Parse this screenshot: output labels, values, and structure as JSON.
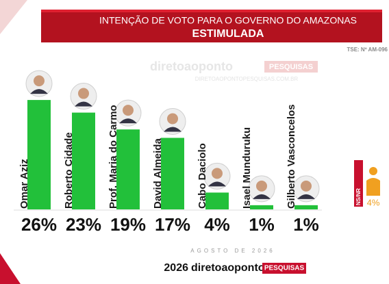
{
  "chart_data": {
    "type": "bar",
    "title": "INTENÇÃO DE VOTO PARA O GOVERNO DO AMAZONAS",
    "subtitle": "ESTIMULADA",
    "registration": "TSE: Nº AM-096",
    "watermark": {
      "brand": "diretoaoponto",
      "tag": "PESQUISAS",
      "site": "DIRETOAOPONTOPESQUISAS.COM.BR"
    },
    "categories": [
      "Omar Aziz",
      "Roberto Cidade",
      "Prof. Maria do Carmo",
      "David Almeida",
      "Cabo Daciolo",
      "Isael Munduruku",
      "Gilberto Vasconcelos"
    ],
    "values": [
      26,
      23,
      19,
      17,
      4,
      1,
      1
    ],
    "value_labels": [
      "26%",
      "23%",
      "19%",
      "17%",
      "4%",
      "1%",
      "1%"
    ],
    "color": "#22c03a",
    "undecided": {
      "label": "NS/NR",
      "value": 4,
      "value_label": "4%",
      "color": "#f0a020"
    },
    "date": "AGOSTO DE 2026",
    "footer": {
      "year": "2026",
      "brand": "diretoaoponto",
      "tag": "PESQUISAS"
    }
  }
}
